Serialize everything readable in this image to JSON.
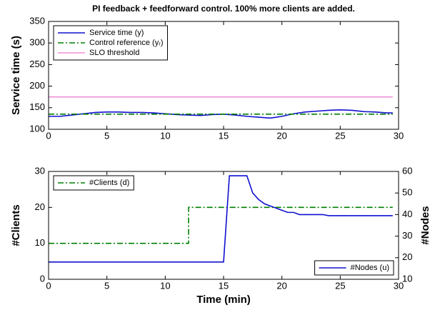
{
  "chart_data": [
    {
      "type": "line",
      "title": "PI feedback + feedforward control. 100% more clients are added.",
      "ylabel": "Service time (s)",
      "xlim": [
        0,
        30
      ],
      "xticks": [
        0,
        5,
        10,
        15,
        20,
        25,
        30
      ],
      "ylim": [
        100,
        350
      ],
      "yticks": [
        100,
        150,
        200,
        250,
        300,
        350
      ],
      "legend_loc": "upper left",
      "series": [
        {
          "name": "Service time (y)",
          "color": "#1010d0",
          "linestyle": "-",
          "x": [
            0,
            1,
            2,
            3,
            4,
            5,
            6,
            7,
            8,
            9,
            10,
            11,
            12,
            13,
            14,
            15,
            16,
            17,
            18,
            19,
            20,
            21,
            22,
            23,
            24,
            25,
            26,
            27,
            28,
            29,
            29.5
          ],
          "values": [
            130,
            130,
            133,
            136,
            139,
            140,
            140,
            139,
            139,
            138,
            136,
            134,
            133,
            132,
            134,
            135,
            133,
            130,
            128,
            126,
            130,
            136,
            140,
            142,
            144,
            145,
            144,
            141,
            140,
            138,
            138
          ]
        },
        {
          "name": "Control reference (yᵣ)",
          "color": "#008000",
          "linestyle": "-.",
          "x": [
            0,
            29.5
          ],
          "values": [
            135,
            135
          ]
        },
        {
          "name": "SLO threshold",
          "color": "#f08fd8",
          "linestyle": "-",
          "x": [
            0,
            29.5
          ],
          "values": [
            175,
            175
          ]
        }
      ]
    },
    {
      "type": "line",
      "xlabel": "Time (min)",
      "ylabel": "#Clients",
      "y2label": "#Nodes",
      "xlim": [
        0,
        30
      ],
      "xticks": [
        0,
        5,
        10,
        15,
        20,
        25,
        30
      ],
      "ylim": [
        0,
        30
      ],
      "yticks": [
        0,
        10,
        20,
        30
      ],
      "y2lim": [
        10,
        60
      ],
      "y2ticks": [
        10,
        20,
        30,
        40,
        50,
        60
      ],
      "legend_loc": "upper left",
      "legend2_loc": "lower right",
      "series": [
        {
          "name": "#Clients (d)",
          "color": "#008000",
          "linestyle": "-.",
          "x": [
            0,
            12,
            12,
            29.5
          ],
          "values": [
            10,
            10,
            20,
            20
          ]
        },
        {
          "name": "#Nodes (u)",
          "color": "#1010d0",
          "linestyle": "-",
          "axis": "y2",
          "x": [
            0,
            15,
            15.5,
            17,
            17.5,
            18,
            18.5,
            19,
            20,
            20.5,
            21,
            21.5,
            23.5,
            24,
            29.5
          ],
          "values": [
            18,
            18,
            58,
            58,
            50,
            47,
            45,
            44,
            42,
            41,
            41,
            40,
            40,
            39.5,
            39.5
          ]
        }
      ]
    }
  ]
}
